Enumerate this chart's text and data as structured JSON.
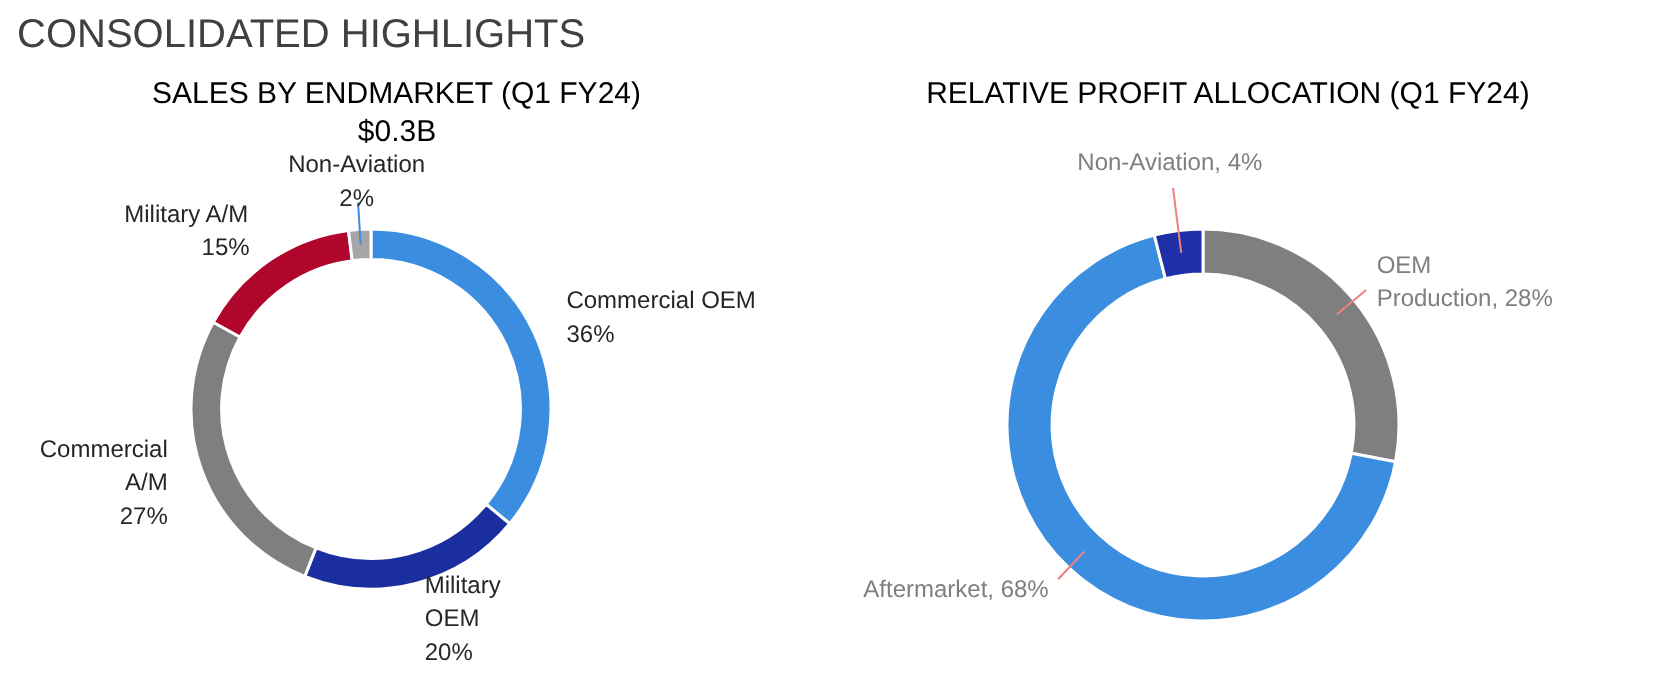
{
  "chart_data": [
    {
      "type": "donut",
      "title": "SALES BY ENDMARKET (Q1 FY24)",
      "subtitle": "$0.3B",
      "annotations": [
        "CONSOLIDATED HIGHLIGHTS"
      ],
      "categories": [
        "Commercial OEM",
        "Military\nOEM",
        "Commercial\nA/M",
        "Military A/M",
        "Non-Aviation"
      ],
      "values": [
        36,
        20,
        27,
        15,
        2
      ],
      "value_labels": [
        "36%",
        "20%",
        "27%",
        "15%",
        "2%"
      ],
      "colors": [
        "#3b8de0",
        "#1a2ea0",
        "#7f7f7f",
        "#b0062c",
        "#a6a6a6"
      ],
      "data_labels": true
    },
    {
      "type": "donut",
      "title": "RELATIVE PROFIT ALLOCATION (Q1 FY24)",
      "categories": [
        "OEM\nProduction",
        "Aftermarket",
        "Non-Aviation"
      ],
      "values": [
        28,
        68,
        4
      ],
      "value_labels": [
        "28%",
        "68%",
        "4%"
      ],
      "colors": [
        "#7f7f7f",
        "#3b8de0",
        "#1f2fa8"
      ],
      "data_labels": true
    }
  ]
}
